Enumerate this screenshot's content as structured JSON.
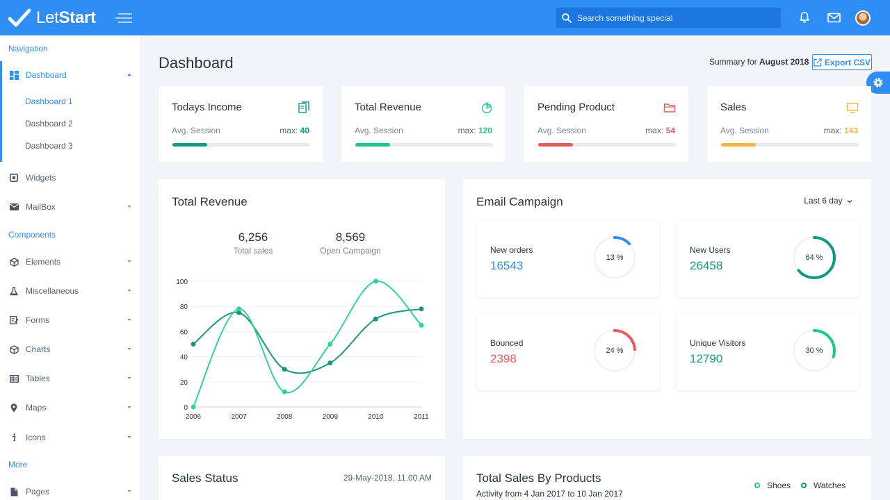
{
  "brand": {
    "name_light": "Let",
    "name_bold": "Start"
  },
  "search": {
    "placeholder": "Search something special"
  },
  "sidebar": {
    "sections": [
      "Navigation",
      "Components",
      "More"
    ],
    "dashboard": {
      "label": "Dashboard",
      "subitems": [
        "Dashboard 1",
        "Dashboard 2",
        "Dashboard 3"
      ]
    },
    "items": [
      "Widgets",
      "MailBox",
      "Elements",
      "Miscellaneous",
      "Forms",
      "Charts",
      "Tables",
      "Maps",
      "Icons",
      "Pages"
    ]
  },
  "header": {
    "title": "Dashboard",
    "summary_prefix": "Summary for ",
    "summary_period": "August 2018",
    "export_label": "Export CSV"
  },
  "stats": [
    {
      "title": "Todays Income",
      "sub": "Avg. Session",
      "max_prefix": "max: ",
      "max": "40",
      "color": "#0b9b82",
      "progress": 0.25
    },
    {
      "title": "Total Revenue",
      "sub": "Avg. Session",
      "max_prefix": "max: ",
      "max": "120",
      "color": "#1cc88a",
      "progress": 0.25
    },
    {
      "title": "Pending Product",
      "sub": "Avg. Session",
      "max_prefix": "max: ",
      "max": "54",
      "color": "#e85a5a",
      "progress": 0.25
    },
    {
      "title": "Sales",
      "sub": "Avg. Session",
      "max_prefix": "max: ",
      "max": "143",
      "color": "#f5b53f",
      "progress": 0.25
    }
  ],
  "revenue": {
    "title": "Total Revenue",
    "metrics": [
      {
        "value": "6,256",
        "label": "Total sales"
      },
      {
        "value": "8,569",
        "label": "Open Campaign"
      }
    ]
  },
  "chart_data": {
    "type": "line",
    "x": [
      "2006",
      "2007",
      "2008",
      "2009",
      "2010",
      "2011"
    ],
    "series": [
      {
        "values": [
          50,
          75,
          30,
          35,
          70,
          78
        ],
        "color": "#15967f"
      },
      {
        "values": [
          0,
          78,
          12,
          50,
          100,
          65
        ],
        "color": "#2fd39a"
      }
    ],
    "ylim": [
      0,
      100
    ],
    "yticks": [
      0,
      20,
      40,
      60,
      80,
      100
    ],
    "grid": true,
    "smooth": true
  },
  "email": {
    "title": "Email Campaign",
    "range_label": "Last 6 day",
    "cards": [
      {
        "label": "New orders",
        "value": "16543",
        "percent": 13,
        "pct_label": "13 %",
        "color": "#2f8ef4",
        "value_color": "#2f8ef4"
      },
      {
        "label": "New Users",
        "value": "26458",
        "percent": 64,
        "pct_label": "64 %",
        "color": "#0b9b82",
        "value_color": "#0b9b82"
      },
      {
        "label": "Bounced",
        "value": "2398",
        "percent": 24,
        "pct_label": "24 %",
        "color": "#e85a5a",
        "value_color": "#e85a5a"
      },
      {
        "label": "Unique Visitors",
        "value": "12790",
        "percent": 30,
        "pct_label": "30 %",
        "color": "#1cc88a",
        "value_color": "#0b9b82"
      }
    ]
  },
  "sales_status": {
    "title": "Sales Status",
    "timestamp": "29-May-2018, 11.00 AM"
  },
  "sales_products": {
    "title": "Total Sales By Products",
    "subtitle": "Activity from 4 Jan 2017 to 10 Jan 2017",
    "legend": [
      {
        "label": "Shoes",
        "color": "#1cc88a"
      },
      {
        "label": "Watches",
        "color": "#0b9b82"
      }
    ]
  }
}
